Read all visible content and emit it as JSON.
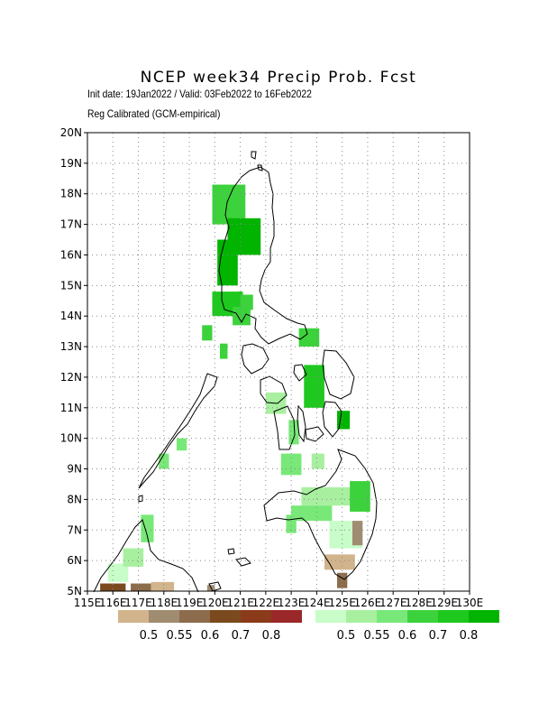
{
  "header": {
    "title": "NCEP week34 Precip Prob. Fcst",
    "subtitle_1": "Init date: 19Jan2022 / Valid: 03Feb2022 to 16Feb2022",
    "subtitle_2": "Reg Calibrated (GCM-empirical)"
  },
  "map": {
    "region": "Philippines",
    "lon_range": [
      115,
      130
    ],
    "lat_range": [
      5,
      20
    ],
    "x_ticks": [
      "115E",
      "116E",
      "117E",
      "118E",
      "119E",
      "120E",
      "121E",
      "122E",
      "123E",
      "124E",
      "125E",
      "126E",
      "127E",
      "128E",
      "129E",
      "130E"
    ],
    "y_ticks": [
      "5N",
      "6N",
      "7N",
      "8N",
      "9N",
      "10N",
      "11N",
      "12N",
      "13N",
      "14N",
      "15N",
      "16N",
      "17N",
      "18N",
      "19N",
      "20N"
    ],
    "grid": true
  },
  "legend_below": {
    "labels": [
      "0.5",
      "0.55",
      "0.6",
      "0.7",
      "0.8"
    ],
    "colors": [
      "#d2b48c",
      "#a08c70",
      "#8c6c4c",
      "#7a4a1e",
      "#8b3a1a",
      "#9b2828"
    ]
  },
  "legend_above": {
    "labels": [
      "0.5",
      "0.55",
      "0.6",
      "0.7",
      "0.8"
    ],
    "colors": [
      "#c8fcc8",
      "#a8f0a0",
      "#78e878",
      "#3cd23c",
      "#1ec81e",
      "#00b400"
    ]
  }
}
